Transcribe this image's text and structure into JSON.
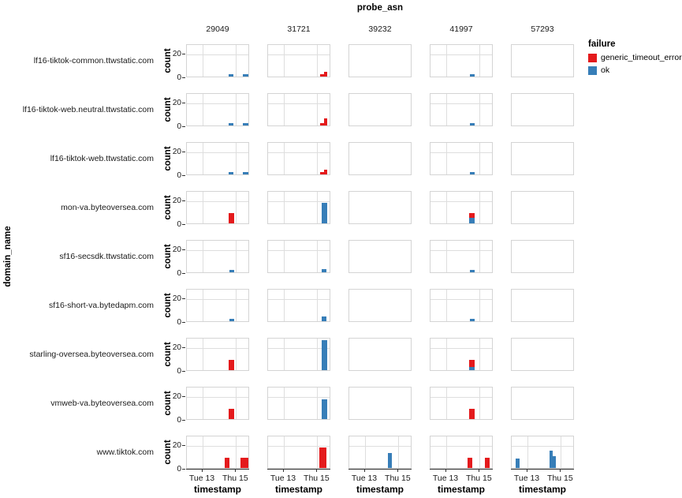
{
  "title": "probe_asn",
  "row_facet_label": "domain_name",
  "legend": {
    "title": "failure",
    "items": [
      {
        "label": "generic_timeout_error",
        "color": "#e41a1c"
      },
      {
        "label": "ok",
        "color": "#377eb8"
      }
    ]
  },
  "chart_data": {
    "type": "bar",
    "facet": {
      "column_field": "probe_asn",
      "row_field": "domain_name"
    },
    "columns": [
      "29049",
      "31721",
      "39232",
      "41997",
      "57293"
    ],
    "rows": [
      "lf16-tiktok-common.ttwstatic.com",
      "lf16-tiktok-web.neutral.ttwstatic.com",
      "lf16-tiktok-web.ttwstatic.com",
      "mon-va.byteoversea.com",
      "sf16-secsdk.ttwstatic.com",
      "sf16-short-va.bytedapm.com",
      "starling-oversea.byteoversea.com",
      "vmweb-va.byteoversea.com",
      "www.tiktok.com"
    ],
    "xlabel": "timestamp",
    "ylabel": "count",
    "x_ticks": [
      {
        "label": "Tue 13",
        "pos": 0.25
      },
      {
        "label": "Thu 15",
        "pos": 0.78
      }
    ],
    "y_ticks": [
      {
        "label": "20",
        "value": 20
      },
      {
        "label": "0",
        "value": 0
      }
    ],
    "ylim": [
      0,
      28.5
    ],
    "grid": "on-panels-with-data",
    "legend_position": "right",
    "series_colors": {
      "generic_timeout_error": "#e41a1c",
      "ok": "#377eb8"
    },
    "panels": [
      {
        "row": "lf16-tiktok-common.ttwstatic.com",
        "col": "29049",
        "bars": [
          {
            "x": 0.7,
            "w": 0.08,
            "stack": [
              {
                "failure": "ok",
                "count": 2
              }
            ]
          },
          {
            "x": 0.93,
            "w": 0.08,
            "stack": [
              {
                "failure": "ok",
                "count": 2
              }
            ]
          }
        ]
      },
      {
        "row": "lf16-tiktok-common.ttwstatic.com",
        "col": "31721",
        "bars": [
          {
            "x": 0.855,
            "w": 0.055,
            "stack": [
              {
                "failure": "generic_timeout_error",
                "count": 2
              }
            ]
          },
          {
            "x": 0.91,
            "w": 0.055,
            "stack": [
              {
                "failure": "generic_timeout_error",
                "count": 4
              }
            ]
          }
        ]
      },
      {
        "row": "lf16-tiktok-common.ttwstatic.com",
        "col": "41997",
        "bars": [
          {
            "x": 0.66,
            "w": 0.07,
            "stack": [
              {
                "failure": "ok",
                "count": 2
              }
            ]
          }
        ]
      },
      {
        "row": "lf16-tiktok-web.neutral.ttwstatic.com",
        "col": "29049",
        "bars": [
          {
            "x": 0.7,
            "w": 0.08,
            "stack": [
              {
                "failure": "ok",
                "count": 2
              }
            ]
          },
          {
            "x": 0.93,
            "w": 0.08,
            "stack": [
              {
                "failure": "ok",
                "count": 2
              }
            ]
          }
        ]
      },
      {
        "row": "lf16-tiktok-web.neutral.ttwstatic.com",
        "col": "31721",
        "bars": [
          {
            "x": 0.855,
            "w": 0.055,
            "stack": [
              {
                "failure": "generic_timeout_error",
                "count": 2
              }
            ]
          },
          {
            "x": 0.91,
            "w": 0.055,
            "stack": [
              {
                "failure": "generic_timeout_error",
                "count": 6
              }
            ]
          }
        ]
      },
      {
        "row": "lf16-tiktok-web.neutral.ttwstatic.com",
        "col": "41997",
        "bars": [
          {
            "x": 0.66,
            "w": 0.07,
            "stack": [
              {
                "failure": "ok",
                "count": 2
              }
            ]
          }
        ]
      },
      {
        "row": "lf16-tiktok-web.ttwstatic.com",
        "col": "29049",
        "bars": [
          {
            "x": 0.7,
            "w": 0.08,
            "stack": [
              {
                "failure": "ok",
                "count": 2
              }
            ]
          },
          {
            "x": 0.93,
            "w": 0.08,
            "stack": [
              {
                "failure": "ok",
                "count": 2
              }
            ]
          }
        ]
      },
      {
        "row": "lf16-tiktok-web.ttwstatic.com",
        "col": "31721",
        "bars": [
          {
            "x": 0.855,
            "w": 0.055,
            "stack": [
              {
                "failure": "generic_timeout_error",
                "count": 2
              }
            ]
          },
          {
            "x": 0.91,
            "w": 0.055,
            "stack": [
              {
                "failure": "generic_timeout_error",
                "count": 4
              }
            ]
          }
        ]
      },
      {
        "row": "lf16-tiktok-web.ttwstatic.com",
        "col": "41997",
        "bars": [
          {
            "x": 0.66,
            "w": 0.07,
            "stack": [
              {
                "failure": "ok",
                "count": 2
              }
            ]
          }
        ]
      },
      {
        "row": "mon-va.byteoversea.com",
        "col": "29049",
        "bars": [
          {
            "x": 0.71,
            "w": 0.09,
            "stack": [
              {
                "failure": "generic_timeout_error",
                "count": 9
              }
            ]
          }
        ]
      },
      {
        "row": "mon-va.byteoversea.com",
        "col": "31721",
        "bars": [
          {
            "x": 0.89,
            "w": 0.085,
            "stack": [
              {
                "failure": "ok",
                "count": 18
              }
            ]
          }
        ]
      },
      {
        "row": "mon-va.byteoversea.com",
        "col": "41997",
        "bars": [
          {
            "x": 0.66,
            "w": 0.085,
            "stack": [
              {
                "failure": "ok",
                "count": 5
              },
              {
                "failure": "generic_timeout_error",
                "count": 4
              }
            ]
          }
        ]
      },
      {
        "row": "sf16-secsdk.ttwstatic.com",
        "col": "29049",
        "bars": [
          {
            "x": 0.71,
            "w": 0.08,
            "stack": [
              {
                "failure": "ok",
                "count": 2
              }
            ]
          }
        ]
      },
      {
        "row": "sf16-secsdk.ttwstatic.com",
        "col": "31721",
        "bars": [
          {
            "x": 0.89,
            "w": 0.075,
            "stack": [
              {
                "failure": "ok",
                "count": 3
              }
            ]
          }
        ]
      },
      {
        "row": "sf16-secsdk.ttwstatic.com",
        "col": "41997",
        "bars": [
          {
            "x": 0.66,
            "w": 0.07,
            "stack": [
              {
                "failure": "ok",
                "count": 2
              }
            ]
          }
        ]
      },
      {
        "row": "sf16-short-va.bytedapm.com",
        "col": "29049",
        "bars": [
          {
            "x": 0.71,
            "w": 0.08,
            "stack": [
              {
                "failure": "ok",
                "count": 2
              }
            ]
          }
        ]
      },
      {
        "row": "sf16-short-va.bytedapm.com",
        "col": "31721",
        "bars": [
          {
            "x": 0.89,
            "w": 0.075,
            "stack": [
              {
                "failure": "ok",
                "count": 4
              }
            ]
          }
        ]
      },
      {
        "row": "sf16-short-va.bytedapm.com",
        "col": "41997",
        "bars": [
          {
            "x": 0.66,
            "w": 0.07,
            "stack": [
              {
                "failure": "ok",
                "count": 2
              }
            ]
          }
        ]
      },
      {
        "row": "starling-oversea.byteoversea.com",
        "col": "29049",
        "bars": [
          {
            "x": 0.71,
            "w": 0.09,
            "stack": [
              {
                "failure": "generic_timeout_error",
                "count": 9
              }
            ]
          }
        ]
      },
      {
        "row": "starling-oversea.byteoversea.com",
        "col": "31721",
        "bars": [
          {
            "x": 0.89,
            "w": 0.085,
            "stack": [
              {
                "failure": "ok",
                "count": 26
              }
            ]
          }
        ]
      },
      {
        "row": "starling-oversea.byteoversea.com",
        "col": "41997",
        "bars": [
          {
            "x": 0.66,
            "w": 0.085,
            "stack": [
              {
                "failure": "ok",
                "count": 3
              },
              {
                "failure": "generic_timeout_error",
                "count": 6
              }
            ]
          }
        ]
      },
      {
        "row": "vmweb-va.byteoversea.com",
        "col": "29049",
        "bars": [
          {
            "x": 0.71,
            "w": 0.09,
            "stack": [
              {
                "failure": "generic_timeout_error",
                "count": 9
              }
            ]
          }
        ]
      },
      {
        "row": "vmweb-va.byteoversea.com",
        "col": "31721",
        "bars": [
          {
            "x": 0.89,
            "w": 0.085,
            "stack": [
              {
                "failure": "ok",
                "count": 17
              }
            ]
          }
        ]
      },
      {
        "row": "vmweb-va.byteoversea.com",
        "col": "41997",
        "bars": [
          {
            "x": 0.66,
            "w": 0.085,
            "stack": [
              {
                "failure": "generic_timeout_error",
                "count": 9
              }
            ]
          }
        ]
      },
      {
        "row": "www.tiktok.com",
        "col": "29049",
        "bars": [
          {
            "x": 0.64,
            "w": 0.08,
            "stack": [
              {
                "failure": "generic_timeout_error",
                "count": 9
              }
            ]
          },
          {
            "x": 0.915,
            "w": 0.125,
            "stack": [
              {
                "failure": "generic_timeout_error",
                "count": 9
              }
            ]
          }
        ]
      },
      {
        "row": "www.tiktok.com",
        "col": "31721",
        "bars": [
          {
            "x": 0.865,
            "w": 0.11,
            "stack": [
              {
                "failure": "generic_timeout_error",
                "count": 18
              }
            ]
          }
        ]
      },
      {
        "row": "www.tiktok.com",
        "col": "39232",
        "bars": [
          {
            "x": 0.645,
            "w": 0.06,
            "stack": [
              {
                "failure": "ok",
                "count": 13
              }
            ]
          }
        ]
      },
      {
        "row": "www.tiktok.com",
        "col": "41997",
        "bars": [
          {
            "x": 0.63,
            "w": 0.075,
            "stack": [
              {
                "failure": "generic_timeout_error",
                "count": 9
              }
            ]
          },
          {
            "x": 0.895,
            "w": 0.075,
            "stack": [
              {
                "failure": "generic_timeout_error",
                "count": 9
              }
            ]
          }
        ]
      },
      {
        "row": "www.tiktok.com",
        "col": "57293",
        "bars": [
          {
            "x": 0.095,
            "w": 0.055,
            "stack": [
              {
                "failure": "ok",
                "count": 8
              }
            ]
          },
          {
            "x": 0.625,
            "w": 0.055,
            "stack": [
              {
                "failure": "ok",
                "count": 15
              }
            ]
          },
          {
            "x": 0.675,
            "w": 0.045,
            "stack": [
              {
                "failure": "ok",
                "count": 10
              }
            ]
          }
        ]
      }
    ]
  }
}
